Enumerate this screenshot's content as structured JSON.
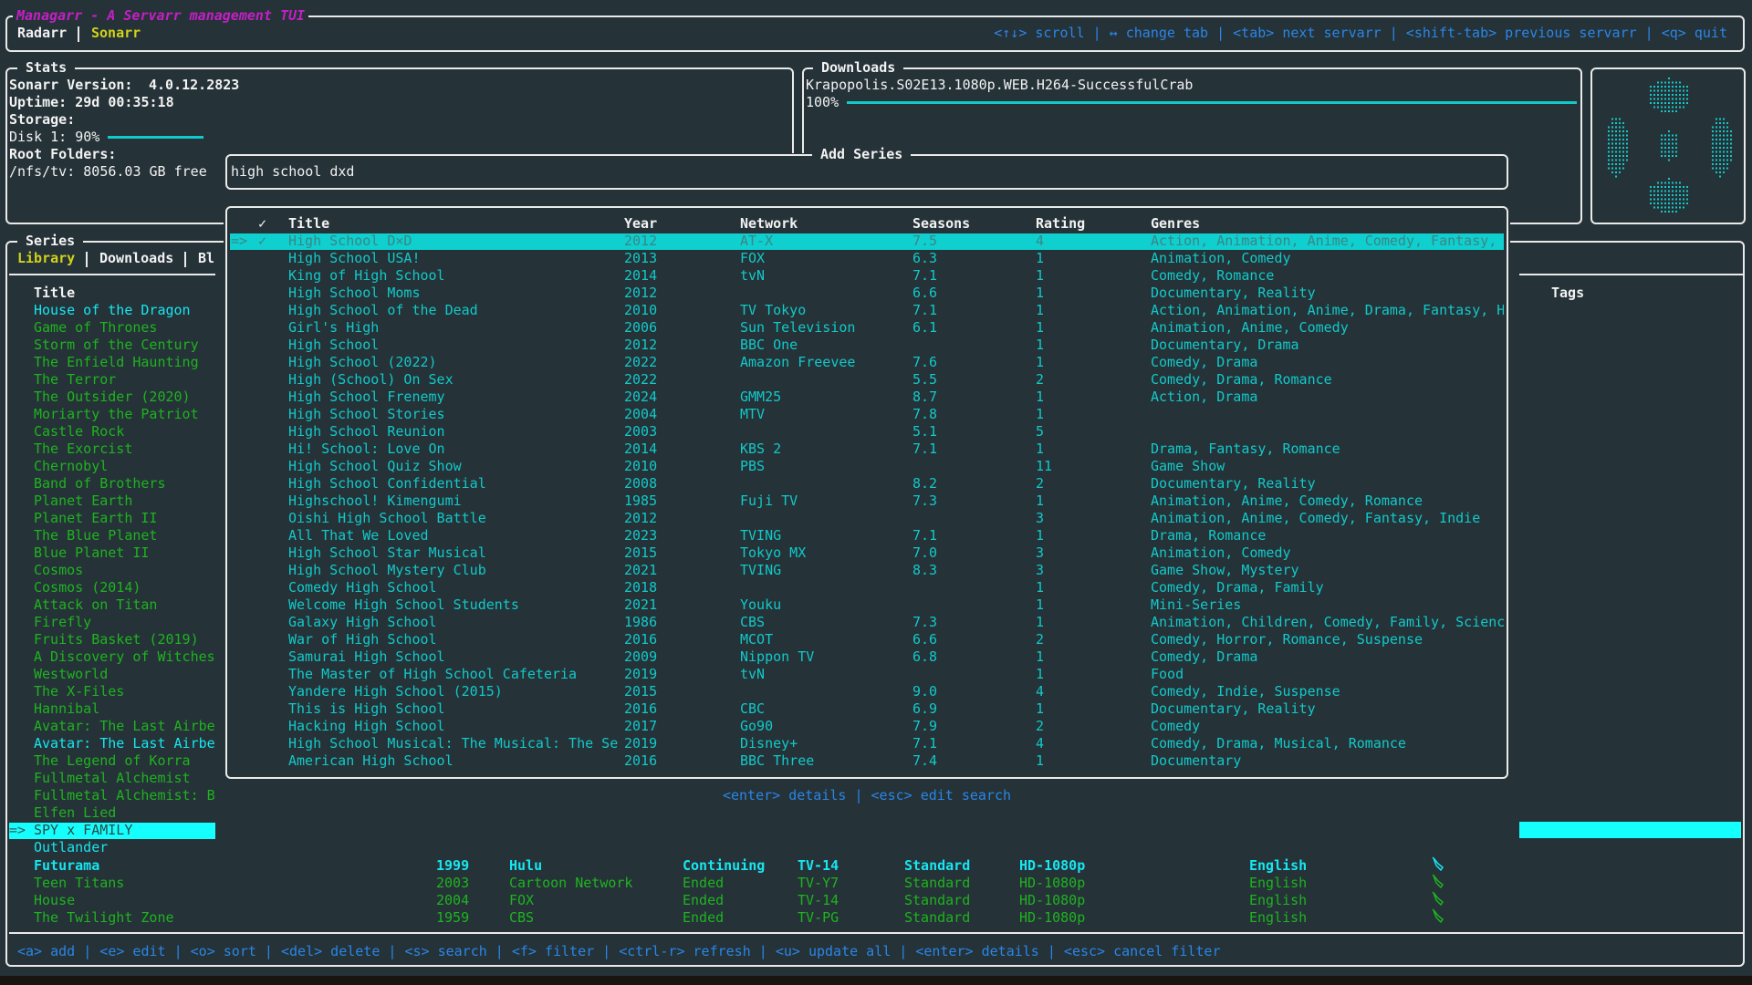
{
  "app": {
    "title": "Managarr - A Servarr management TUI",
    "servarr_tabs": [
      {
        "label": "Radarr",
        "active": false
      },
      {
        "label": "Sonarr",
        "active": true
      }
    ],
    "help": "<↑↓> scroll | ↔ change tab | <tab> next servarr | <shift-tab> previous servarr | <q> quit"
  },
  "stats": {
    "title": "Stats",
    "version_label": "Sonarr Version:",
    "version": "4.0.12.2823",
    "uptime": "Uptime: 29d 00:35:18",
    "storage_label": "Storage:",
    "disk": "Disk 1: 90%",
    "disk_percent": 90,
    "root_folders_label": "Root Folders:",
    "root_folder": "/nfs/tv: 8056.03 GB free"
  },
  "downloads": {
    "title": "Downloads",
    "name": "Krapopolis.S02E13.1080p.WEB.H264-SuccessfulCrab",
    "progress_label": "100%",
    "progress": 100
  },
  "logo": {
    "icon": "managarr-logo"
  },
  "series": {
    "title": "Series",
    "tabs": [
      {
        "label": "Library",
        "active": true
      },
      {
        "label": "Downloads",
        "active": false
      },
      {
        "label": "Bl",
        "active": false
      }
    ],
    "title_header": "Title",
    "tags_header": "Tags",
    "selected_marker": "=>",
    "list": [
      {
        "title": "House of the Dragon",
        "color": "cyan"
      },
      {
        "title": "Game of Thrones",
        "color": "green"
      },
      {
        "title": "Storm of the Century",
        "color": "green"
      },
      {
        "title": "The Enfield Haunting",
        "color": "green"
      },
      {
        "title": "The Terror",
        "color": "green"
      },
      {
        "title": "The Outsider (2020)",
        "color": "green"
      },
      {
        "title": "Moriarty the Patriot",
        "color": "green"
      },
      {
        "title": "Castle Rock",
        "color": "green"
      },
      {
        "title": "The Exorcist",
        "color": "green"
      },
      {
        "title": "Chernobyl",
        "color": "green"
      },
      {
        "title": "Band of Brothers",
        "color": "green"
      },
      {
        "title": "Planet Earth",
        "color": "green"
      },
      {
        "title": "Planet Earth II",
        "color": "green"
      },
      {
        "title": "The Blue Planet",
        "color": "green"
      },
      {
        "title": "Blue Planet II",
        "color": "green"
      },
      {
        "title": "Cosmos",
        "color": "green"
      },
      {
        "title": "Cosmos (2014)",
        "color": "green"
      },
      {
        "title": "Attack on Titan",
        "color": "green"
      },
      {
        "title": "Firefly",
        "color": "green"
      },
      {
        "title": "Fruits Basket (2019)",
        "color": "green"
      },
      {
        "title": "A Discovery of Witches",
        "color": "green"
      },
      {
        "title": "Westworld",
        "color": "green"
      },
      {
        "title": "The X-Files",
        "color": "green"
      },
      {
        "title": "Hannibal",
        "color": "green"
      },
      {
        "title": "Avatar: The Last Airbe",
        "color": "green"
      },
      {
        "title": "Avatar: The Last Airbe",
        "color": "cyan"
      },
      {
        "title": "The Legend of Korra",
        "color": "green"
      },
      {
        "title": "Fullmetal Alchemist",
        "color": "green"
      },
      {
        "title": "Fullmetal Alchemist: B",
        "color": "green"
      },
      {
        "title": "Elfen Lied",
        "color": "green"
      },
      {
        "title": "SPY x FAMILY",
        "color": "selected"
      },
      {
        "title": "Outlander",
        "color": "cyan"
      }
    ],
    "full_rows": [
      {
        "title": "Futurama",
        "year": "1999",
        "network": "Hulu",
        "status": "Continuing",
        "rating": "TV-14",
        "type": "Standard",
        "quality": "HD-1080p",
        "language": "English",
        "color": "cyan"
      },
      {
        "title": "Teen Titans",
        "year": "2003",
        "network": "Cartoon Network",
        "status": "Ended",
        "rating": "TV-Y7",
        "type": "Standard",
        "quality": "HD-1080p",
        "language": "English",
        "color": "green"
      },
      {
        "title": "House",
        "year": "2004",
        "network": "FOX",
        "status": "Ended",
        "rating": "TV-14",
        "type": "Standard",
        "quality": "HD-1080p",
        "language": "English",
        "color": "green"
      },
      {
        "title": "The Twilight Zone",
        "year": "1959",
        "network": "CBS",
        "status": "Ended",
        "rating": "TV-PG",
        "type": "Standard",
        "quality": "HD-1080p",
        "language": "English",
        "color": "green"
      }
    ],
    "footer_help": "<a> add | <e> edit | <o> sort | <del> delete | <s> search | <f> filter | <ctrl-r> refresh | <u> update all | <enter> details | <esc> cancel filter"
  },
  "add_series": {
    "title": "Add Series",
    "query": "high school dxd",
    "help": "<enter> details | <esc> edit search",
    "selected_marker": "=>",
    "check": "✓",
    "headers": {
      "check": "✓",
      "title": "Title",
      "year": "Year",
      "network": "Network",
      "seasons": "Seasons",
      "rating": "Rating",
      "genres": "Genres"
    },
    "rows": [
      {
        "check": "✓",
        "title": "High School D×D",
        "year": "2012",
        "network": "AT-X",
        "seasons": "7.5",
        "rating": "4",
        "genres": "Action, Animation, Anime, Comedy, Fantasy,"
      },
      {
        "check": "",
        "title": "High School USA!",
        "year": "2013",
        "network": "FOX",
        "seasons": "6.3",
        "rating": "1",
        "genres": "Animation, Comedy"
      },
      {
        "check": "",
        "title": "King of High School",
        "year": "2014",
        "network": "tvN",
        "seasons": "7.1",
        "rating": "1",
        "genres": "Comedy, Romance"
      },
      {
        "check": "",
        "title": "High School Moms",
        "year": "2012",
        "network": "",
        "seasons": "6.6",
        "rating": "1",
        "genres": "Documentary, Reality"
      },
      {
        "check": "",
        "title": "High School of the Dead",
        "year": "2010",
        "network": "TV Tokyo",
        "seasons": "7.1",
        "rating": "1",
        "genres": "Action, Animation, Anime, Drama, Fantasy, H"
      },
      {
        "check": "",
        "title": "Girl's High",
        "year": "2006",
        "network": "Sun Television",
        "seasons": "6.1",
        "rating": "1",
        "genres": "Animation, Anime, Comedy"
      },
      {
        "check": "",
        "title": "High School",
        "year": "2012",
        "network": "BBC One",
        "seasons": "",
        "rating": "1",
        "genres": "Documentary, Drama"
      },
      {
        "check": "",
        "title": "High School (2022)",
        "year": "2022",
        "network": "Amazon Freevee",
        "seasons": "7.6",
        "rating": "1",
        "genres": "Comedy, Drama"
      },
      {
        "check": "",
        "title": "High (School) On Sex",
        "year": "2022",
        "network": "",
        "seasons": "5.5",
        "rating": "2",
        "genres": "Comedy, Drama, Romance"
      },
      {
        "check": "",
        "title": "High School Frenemy",
        "year": "2024",
        "network": "GMM25",
        "seasons": "8.7",
        "rating": "1",
        "genres": "Action, Drama"
      },
      {
        "check": "",
        "title": "High School Stories",
        "year": "2004",
        "network": "MTV",
        "seasons": "7.8",
        "rating": "1",
        "genres": ""
      },
      {
        "check": "",
        "title": "High School Reunion",
        "year": "2003",
        "network": "",
        "seasons": "5.1",
        "rating": "5",
        "genres": ""
      },
      {
        "check": "",
        "title": "Hi! School: Love On",
        "year": "2014",
        "network": "KBS 2",
        "seasons": "7.1",
        "rating": "1",
        "genres": "Drama, Fantasy, Romance"
      },
      {
        "check": "",
        "title": "High School Quiz Show",
        "year": "2010",
        "network": "PBS",
        "seasons": "",
        "rating": "11",
        "genres": "Game Show"
      },
      {
        "check": "",
        "title": "High School Confidential",
        "year": "2008",
        "network": "",
        "seasons": "8.2",
        "rating": "2",
        "genres": "Documentary, Reality"
      },
      {
        "check": "",
        "title": "Highschool! Kimengumi",
        "year": "1985",
        "network": "Fuji TV",
        "seasons": "7.3",
        "rating": "1",
        "genres": "Animation, Anime, Comedy, Romance"
      },
      {
        "check": "",
        "title": "Oishi High School Battle",
        "year": "2012",
        "network": "",
        "seasons": "",
        "rating": "3",
        "genres": "Animation, Anime, Comedy, Fantasy, Indie"
      },
      {
        "check": "",
        "title": "All That We Loved",
        "year": "2023",
        "network": "TVING",
        "seasons": "7.1",
        "rating": "1",
        "genres": "Drama, Romance"
      },
      {
        "check": "",
        "title": "High School Star Musical",
        "year": "2015",
        "network": "Tokyo MX",
        "seasons": "7.0",
        "rating": "3",
        "genres": "Animation, Comedy"
      },
      {
        "check": "",
        "title": "High School Mystery Club",
        "year": "2021",
        "network": "TVING",
        "seasons": "8.3",
        "rating": "3",
        "genres": "Game Show, Mystery"
      },
      {
        "check": "",
        "title": "Comedy High School",
        "year": "2018",
        "network": "",
        "seasons": "",
        "rating": "1",
        "genres": "Comedy, Drama, Family"
      },
      {
        "check": "",
        "title": "Welcome High School Students",
        "year": "2021",
        "network": "Youku",
        "seasons": "",
        "rating": "1",
        "genres": "Mini-Series"
      },
      {
        "check": "",
        "title": "Galaxy High School",
        "year": "1986",
        "network": "CBS",
        "seasons": "7.3",
        "rating": "1",
        "genres": "Animation, Children, Comedy, Family, Scienc"
      },
      {
        "check": "",
        "title": "War of High School",
        "year": "2016",
        "network": "MCOT",
        "seasons": "6.6",
        "rating": "2",
        "genres": "Comedy, Horror, Romance, Suspense"
      },
      {
        "check": "",
        "title": "Samurai High School",
        "year": "2009",
        "network": "Nippon TV",
        "seasons": "6.8",
        "rating": "1",
        "genres": "Comedy, Drama"
      },
      {
        "check": "",
        "title": "The Master of High School Cafeteria",
        "year": "2019",
        "network": "tvN",
        "seasons": "",
        "rating": "1",
        "genres": "Food"
      },
      {
        "check": "",
        "title": "Yandere High School (2015)",
        "year": "2015",
        "network": "",
        "seasons": "9.0",
        "rating": "4",
        "genres": "Comedy, Indie, Suspense"
      },
      {
        "check": "",
        "title": "This is High School",
        "year": "2016",
        "network": "CBC",
        "seasons": "6.9",
        "rating": "1",
        "genres": "Documentary, Reality"
      },
      {
        "check": "",
        "title": "Hacking High School",
        "year": "2017",
        "network": "Go90",
        "seasons": "7.9",
        "rating": "2",
        "genres": "Comedy"
      },
      {
        "check": "",
        "title": "High School Musical: The Musical: The Se",
        "year": "2019",
        "network": "Disney+",
        "seasons": "7.1",
        "rating": "4",
        "genres": "Comedy, Drama, Musical, Romance"
      },
      {
        "check": "",
        "title": "American High School",
        "year": "2016",
        "network": "BBC Three",
        "seasons": "7.4",
        "rating": "1",
        "genres": "Documentary"
      }
    ]
  },
  "colors": {
    "background": "#253238",
    "cyan": "#12c9c9",
    "green": "#1fb31f",
    "highlight": "#0fcfcf",
    "selected": "#15ffff",
    "keys": "#2a86e6",
    "title": "#c51fc5",
    "active_tab": "#d2d21a"
  }
}
